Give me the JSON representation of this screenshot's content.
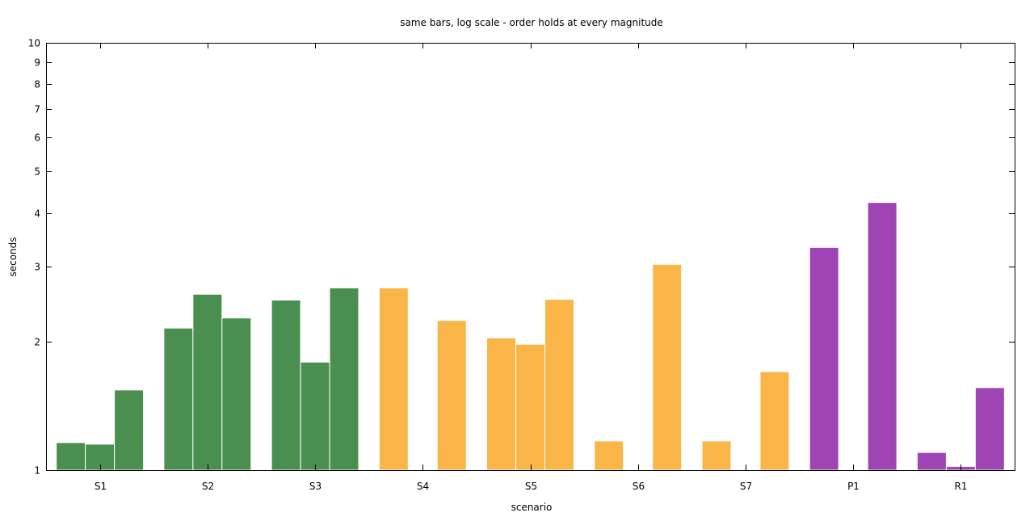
{
  "chart_data": {
    "type": "bar",
    "title": "same bars, log scale - order holds at every magnitude",
    "xlabel": "scenario",
    "ylabel": "seconds",
    "yscale": "log",
    "ylim": [
      1,
      10
    ],
    "yticks": [
      1,
      2,
      3,
      4,
      5,
      6,
      7,
      8,
      9,
      10
    ],
    "grid": false,
    "legend": "none",
    "categories": [
      "S1",
      "S2",
      "S3",
      "S4",
      "S5",
      "S6",
      "S7",
      "P1",
      "R1"
    ],
    "group_colors": [
      "#4a8f4f",
      "#4a8f4f",
      "#4a8f4f",
      "#f9b548",
      "#f9b548",
      "#f9b548",
      "#f9b548",
      "#9e44b5",
      "#9e44b5"
    ],
    "series": [
      {
        "values": [
          1.16,
          2.15,
          2.5,
          2.67,
          2.04,
          1.17,
          1.17,
          3.32,
          1.1
        ]
      },
      {
        "values": [
          1.15,
          2.58,
          1.79,
          null,
          1.97,
          null,
          null,
          null,
          1.02
        ]
      },
      {
        "values": [
          1.54,
          2.27,
          2.67,
          2.24,
          2.51,
          3.03,
          1.7,
          4.23,
          1.56
        ]
      }
    ]
  }
}
